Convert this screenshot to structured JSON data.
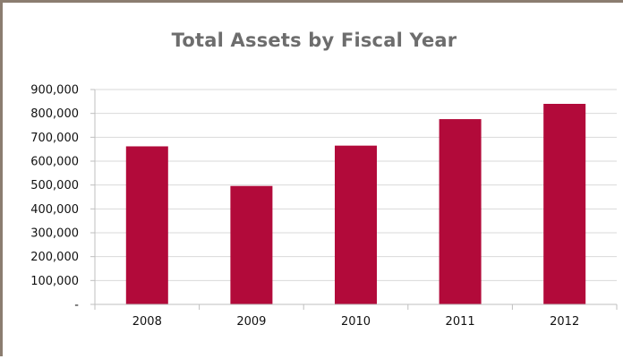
{
  "chart_data": {
    "type": "bar",
    "title": "Total Assets by Fiscal Year",
    "xlabel": "",
    "ylabel": "",
    "categories": [
      "2008",
      "2009",
      "2010",
      "2011",
      "2012"
    ],
    "values": [
      662000,
      496000,
      665000,
      776000,
      840000
    ],
    "ylim": [
      0,
      900000
    ],
    "y_ticks": [
      0,
      100000,
      200000,
      300000,
      400000,
      500000,
      600000,
      700000,
      800000,
      900000
    ],
    "y_tick_labels": [
      "-",
      "100,000",
      "200,000",
      "300,000",
      "400,000",
      "500,000",
      "600,000",
      "700,000",
      "800,000",
      "900,000"
    ],
    "grid": true,
    "legend": "none",
    "colors": {
      "bar": "#b20a3a",
      "grid": "#d9d9d9",
      "axis": "#bfbfbf",
      "frame": "#8b7d70",
      "title": "#6d6d6d"
    }
  }
}
